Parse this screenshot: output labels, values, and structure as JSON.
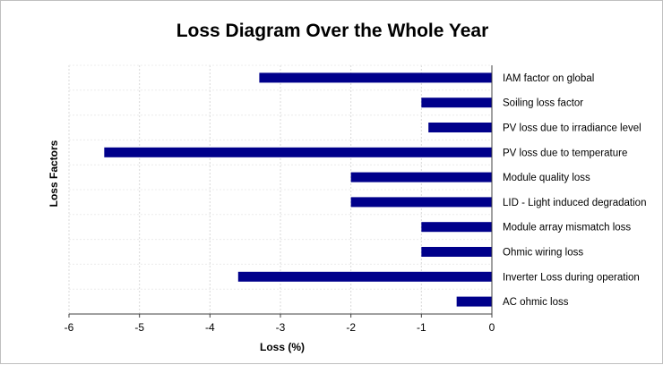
{
  "chart_data": {
    "type": "bar",
    "orientation": "horizontal",
    "title": "Loss Diagram Over the Whole Year",
    "xlabel": "Loss (%)",
    "ylabel": "Loss Factors",
    "xlim": [
      -6,
      0
    ],
    "xticks": [
      "-6",
      "-5",
      "-4",
      "-3",
      "-2",
      "-1",
      "0"
    ],
    "grid": "vertical",
    "bar_color": "#00008B",
    "categories": [
      "IAM factor on global",
      "Soiling loss factor",
      "PV loss due to irradiance level",
      "PV loss due to temperature",
      "Module quality loss",
      "LID - Light induced degradation",
      "Module array mismatch loss",
      "Ohmic wiring loss",
      "Inverter Loss during operation",
      "AC ohmic loss"
    ],
    "values": [
      -3.3,
      -1.0,
      -0.9,
      -5.5,
      -2.0,
      -2.0,
      -1.0,
      -1.0,
      -3.6,
      -0.5
    ]
  }
}
